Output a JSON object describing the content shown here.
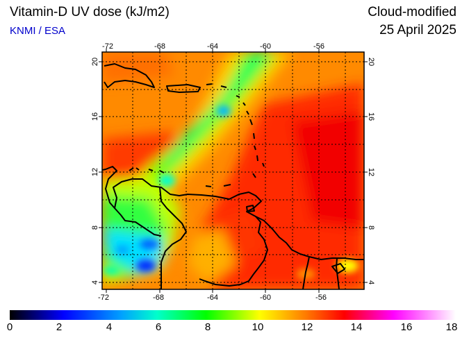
{
  "header": {
    "title": "Vitamin-D UV dose (kJ/m2)",
    "subtitle": "KNMI / ESA",
    "mode": "Cloud-modified",
    "date": "25 April 2025"
  },
  "map": {
    "lon_ticks": [
      "-72",
      "-68",
      "-64",
      "-60",
      "-56"
    ],
    "lat_ticks": [
      "4",
      "8",
      "12",
      "16",
      "20"
    ],
    "lon_range": [
      -72,
      -53
    ],
    "lat_range": [
      3.5,
      20.5
    ]
  },
  "colorbar": {
    "ticks": [
      "0",
      "2",
      "4",
      "6",
      "8",
      "10",
      "12",
      "14",
      "16",
      "18"
    ],
    "min": 0,
    "max": 18,
    "colors": [
      "#000000",
      "#0000ff",
      "#00ffff",
      "#00ff00",
      "#ffff00",
      "#ff8000",
      "#ff0000",
      "#ff00ff",
      "#ffffff"
    ]
  }
}
